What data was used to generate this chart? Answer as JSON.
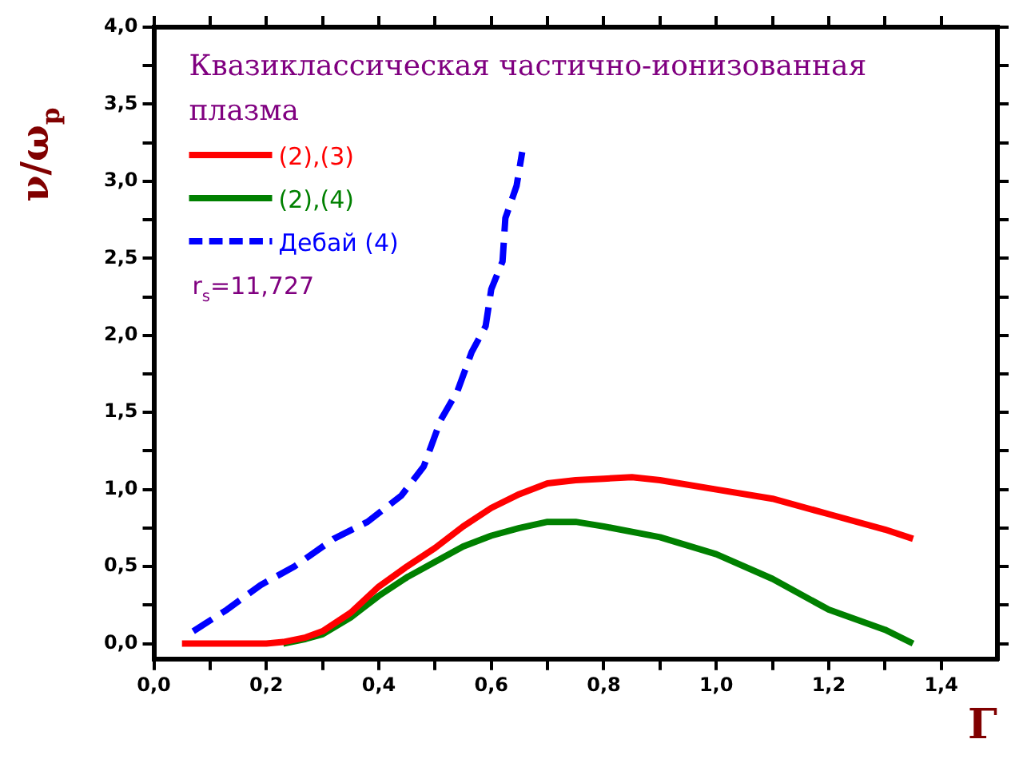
{
  "chart_data": {
    "type": "line",
    "subtitle": "Квазиклассическая частично-ионизованная плазма",
    "xlabel": "Γ",
    "ylabel": "ν/ω$_{p}$",
    "annotations": [
      "r$_{s}$=11,727"
    ],
    "series": [
      {
        "name": "(2),(3)",
        "color": "#ff0000",
        "line_style": "solid",
        "x": [
          0.05,
          0.1,
          0.15,
          0.2,
          0.23,
          0.27,
          0.3,
          0.35,
          0.4,
          0.45,
          0.5,
          0.55,
          0.6,
          0.65,
          0.7,
          0.75,
          0.8,
          0.85,
          0.9,
          1.0,
          1.1,
          1.2,
          1.3,
          1.35
        ],
        "values": [
          0,
          0,
          0,
          0,
          0.01,
          0.04,
          0.08,
          0.2,
          0.37,
          0.5,
          0.62,
          0.76,
          0.88,
          0.97,
          1.04,
          1.06,
          1.07,
          1.08,
          1.06,
          1.0,
          0.94,
          0.84,
          0.74,
          0.68
        ]
      },
      {
        "name": "(2),(4)",
        "color": "#008000",
        "line_style": "solid",
        "x": [
          0.23,
          0.27,
          0.3,
          0.35,
          0.4,
          0.45,
          0.5,
          0.55,
          0.6,
          0.65,
          0.7,
          0.75,
          0.8,
          0.9,
          1.0,
          1.1,
          1.2,
          1.3,
          1.35
        ],
        "values": [
          0,
          0.03,
          0.06,
          0.17,
          0.31,
          0.43,
          0.53,
          0.63,
          0.7,
          0.75,
          0.79,
          0.79,
          0.76,
          0.69,
          0.58,
          0.42,
          0.22,
          0.09,
          0.0
        ]
      },
      {
        "name": "Дебай (4)",
        "color": "#0000ff",
        "line_style": "dashed",
        "x": [
          0.07,
          0.13,
          0.19,
          0.25,
          0.32,
          0.38,
          0.44,
          0.48,
          0.51,
          0.54,
          0.565,
          0.59,
          0.6,
          0.62,
          0.625,
          0.645,
          0.655
        ],
        "values": [
          0.08,
          0.22,
          0.38,
          0.5,
          0.68,
          0.79,
          0.96,
          1.15,
          1.45,
          1.64,
          1.89,
          2.06,
          2.3,
          2.48,
          2.76,
          2.97,
          3.19
        ]
      }
    ],
    "xlim": [
      0,
      1.5
    ],
    "ylim": [
      -0.1,
      4.0
    ],
    "xticks": [
      {
        "value": 0,
        "label": "0,0"
      },
      {
        "value": 0.1,
        "label": null
      },
      {
        "value": 0.2,
        "label": "0,2"
      },
      {
        "value": 0.3,
        "label": null
      },
      {
        "value": 0.4,
        "label": "0,4"
      },
      {
        "value": 0.5,
        "label": null
      },
      {
        "value": 0.6,
        "label": "0,6"
      },
      {
        "value": 0.7,
        "label": null
      },
      {
        "value": 0.8,
        "label": "0,8"
      },
      {
        "value": 0.9,
        "label": null
      },
      {
        "value": 1.0,
        "label": "1,0"
      },
      {
        "value": 1.1,
        "label": null
      },
      {
        "value": 1.2,
        "label": "1,2"
      },
      {
        "value": 1.3,
        "label": null
      },
      {
        "value": 1.4,
        "label": "1,4"
      }
    ],
    "yticks": [
      {
        "value": 0,
        "label": "0,0"
      },
      {
        "value": 0.25,
        "label": null
      },
      {
        "value": 0.5,
        "label": "0,5"
      },
      {
        "value": 0.75,
        "label": null
      },
      {
        "value": 1.0,
        "label": "1,0"
      },
      {
        "value": 1.25,
        "label": null
      },
      {
        "value": 1.5,
        "label": "1,5"
      },
      {
        "value": 1.75,
        "label": null
      },
      {
        "value": 2.0,
        "label": "2,0"
      },
      {
        "value": 2.25,
        "label": null
      },
      {
        "value": 2.5,
        "label": "2,5"
      },
      {
        "value": 2.75,
        "label": null
      },
      {
        "value": 3.0,
        "label": "3,0"
      },
      {
        "value": 3.25,
        "label": null
      },
      {
        "value": 3.5,
        "label": "3,5"
      },
      {
        "value": 3.75,
        "label": null
      },
      {
        "value": 4.0,
        "label": "4,0"
      }
    ],
    "grid": false,
    "legend": "top left",
    "marker": "none"
  }
}
